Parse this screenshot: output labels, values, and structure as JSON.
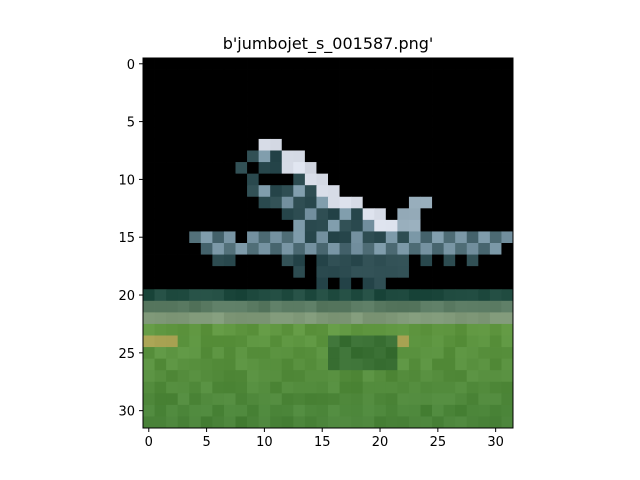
{
  "chart_data": {
    "type": "heatmap",
    "title": "b'jumbojet_s_001587.png'",
    "xlabel": "",
    "ylabel": "",
    "xlim": [
      -0.5,
      31.5
    ],
    "ylim": [
      31.5,
      -0.5
    ],
    "x_ticks": [
      0,
      5,
      10,
      15,
      20,
      25,
      30
    ],
    "y_ticks": [
      0,
      5,
      10,
      15,
      20,
      25,
      30
    ],
    "x_tick_labels": [
      "0",
      "5",
      "10",
      "15",
      "20",
      "25",
      "30"
    ],
    "y_tick_labels": [
      "0",
      "5",
      "10",
      "15",
      "20",
      "25",
      "30"
    ],
    "grid": false,
    "image_size": [
      32,
      32
    ],
    "content": "32x32 pixel RGB image of a jumbo jet aircraft on a runway with green grass below and blue sky above",
    "colors": {
      "sky_top_left": "#4f8fbf",
      "sky_top_right": "#7cc3dc",
      "sky_low": "#8fcfe3",
      "plane_light": "#d8dde8",
      "plane_mid": "#7a97a6",
      "plane_dark": "#2b4a4f",
      "runway_dark": "#1f4a3f",
      "runway_gray": "#7f9878",
      "grass_light": "#5f9640",
      "grass_dark": "#3f7a35",
      "grass_yellow": "#a6a050"
    }
  }
}
